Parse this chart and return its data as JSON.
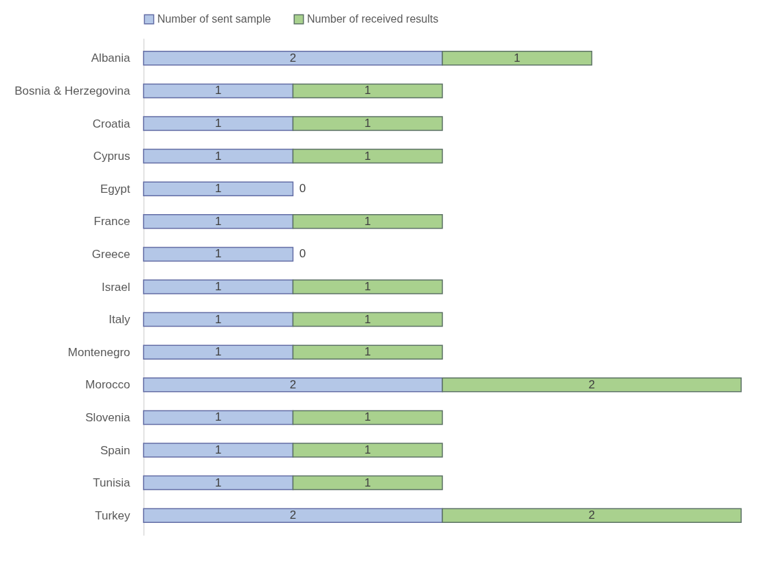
{
  "chart_data": {
    "type": "bar",
    "orientation": "horizontal",
    "stacked": true,
    "data_labels": true,
    "legend": "top",
    "grid": false,
    "tick_labels": "y",
    "categories": [
      "Albania",
      "Bosnia & Herzegovina",
      "Croatia",
      "Cyprus",
      "Egypt",
      "France",
      "Greece",
      "Israel",
      "Italy",
      "Montenegro",
      "Morocco",
      "Slovenia",
      "Spain",
      "Tunisia",
      "Turkey"
    ],
    "series": [
      {
        "name": "Number of sent sample",
        "color": "#b4c7e7",
        "values": [
          2,
          1,
          1,
          1,
          1,
          1,
          1,
          1,
          1,
          1,
          2,
          1,
          1,
          1,
          2
        ]
      },
      {
        "name": "Number of received results",
        "color": "#a9d18e",
        "values": [
          1,
          1,
          1,
          1,
          0,
          1,
          0,
          1,
          1,
          1,
          2,
          1,
          1,
          1,
          2
        ]
      }
    ]
  }
}
